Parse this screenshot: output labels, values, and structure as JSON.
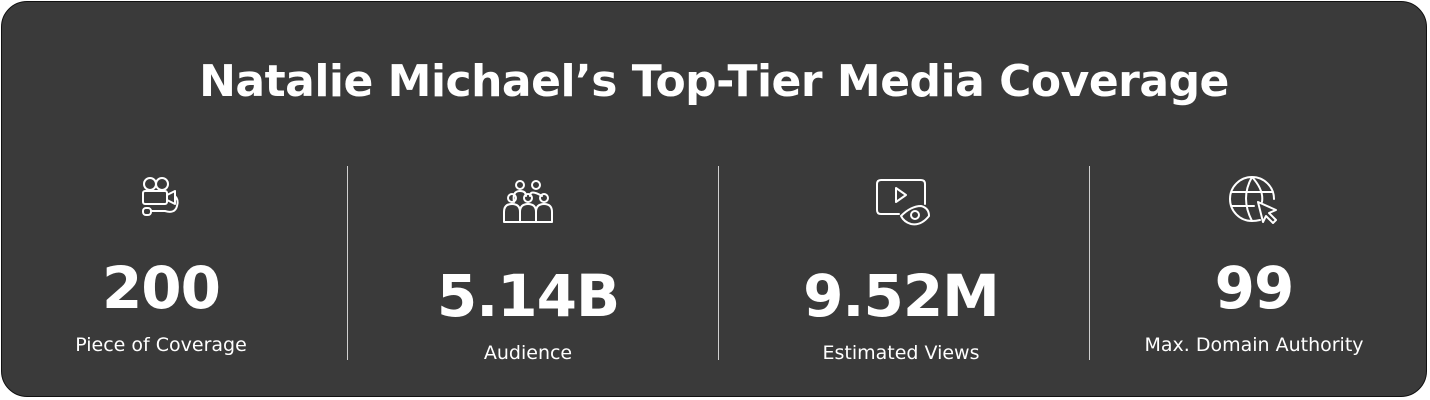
{
  "title": "Natalie Michael’s Top-Tier Media Coverage",
  "stats": [
    {
      "value": "200",
      "label": "Piece of Coverage"
    },
    {
      "value": "5.14B",
      "label": "Audience"
    },
    {
      "value": "9.52M",
      "label": "Estimated Views"
    },
    {
      "value": "99",
      "label": "Max. Domain Authority"
    }
  ]
}
